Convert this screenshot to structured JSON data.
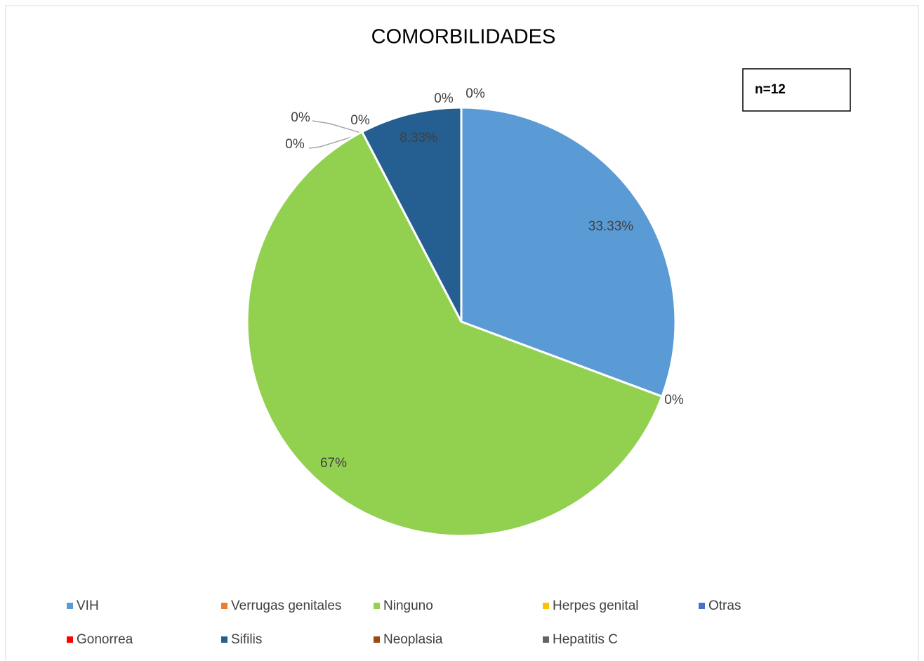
{
  "chart_data": {
    "type": "pie",
    "title": "COMORBILIDADES",
    "annotation": "n=12",
    "categories": [
      "VIH",
      "Verrugas genitales",
      "Ninguno",
      "Herpes genital",
      "Otras",
      "Gonorrea",
      "Sifilis",
      "Neoplasia",
      "Hepatitis C"
    ],
    "values": [
      33.33,
      0,
      67,
      0,
      0,
      0,
      8.33,
      0,
      0
    ],
    "value_labels": [
      "33.33%",
      "0%",
      "67%",
      "0%",
      "0%",
      "0%",
      "8.33%",
      "0%",
      "0%"
    ],
    "colors": [
      "#5b9bd5",
      "#ed7d31",
      "#92d050",
      "#ffc000",
      "#4472c4",
      "#ff0000",
      "#255e91",
      "#9e480e",
      "#636363"
    ],
    "legend": "bottom"
  }
}
